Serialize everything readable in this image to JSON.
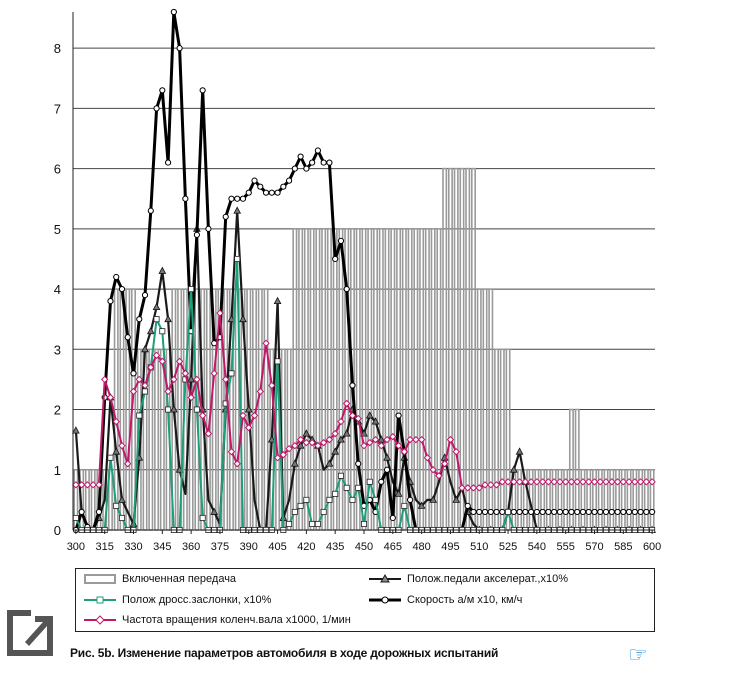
{
  "chart_data": {
    "type": "line",
    "x": [
      300,
      303,
      306,
      309,
      312,
      315,
      318,
      321,
      324,
      327,
      330,
      333,
      336,
      339,
      342,
      345,
      348,
      351,
      354,
      357,
      360,
      363,
      366,
      369,
      372,
      375,
      378,
      381,
      384,
      387,
      390,
      393,
      396,
      399,
      402,
      405,
      408,
      411,
      414,
      417,
      420,
      423,
      426,
      429,
      432,
      435,
      438,
      441,
      444,
      447,
      450,
      453,
      456,
      459,
      462,
      465,
      468,
      471,
      474,
      477,
      480,
      483,
      486,
      489,
      492,
      495,
      498,
      501,
      504,
      507,
      510,
      513,
      516,
      519,
      522,
      525,
      528,
      531,
      534,
      537,
      540,
      543,
      546,
      549,
      552,
      555,
      558,
      561,
      564,
      567,
      570,
      573,
      576,
      579,
      582,
      585,
      588,
      591,
      594,
      597,
      600
    ],
    "xticks": [
      300,
      315,
      330,
      345,
      360,
      375,
      390,
      405,
      420,
      435,
      450,
      465,
      480,
      495,
      510,
      525,
      540,
      555,
      570,
      585,
      600
    ],
    "yticks": [
      0,
      1,
      2,
      3,
      4,
      5,
      6,
      7,
      8
    ],
    "ylim": [
      0,
      8.6
    ],
    "xlim": [
      298.5,
      601.5
    ],
    "grid": true,
    "series": [
      {
        "name": "Включенная передача",
        "kind": "step-bar",
        "color": "#9a9a9a",
        "values": [
          1,
          1,
          1,
          1,
          1,
          1,
          1,
          4,
          4,
          4,
          4,
          3,
          3,
          3,
          3,
          3,
          3,
          4,
          4,
          4,
          4,
          4,
          4,
          4,
          4,
          4,
          4,
          4,
          4,
          4,
          4,
          4,
          4,
          4,
          3,
          3,
          3,
          3,
          5,
          5,
          5,
          5,
          5,
          5,
          5,
          5,
          5,
          5,
          5,
          5,
          5,
          5,
          5,
          5,
          5,
          5,
          5,
          5,
          5,
          5,
          5,
          5,
          5,
          5,
          6,
          6,
          6,
          6,
          6,
          6,
          4,
          4,
          4,
          3,
          3,
          3,
          1,
          1,
          1,
          1,
          1,
          1,
          1,
          1,
          1,
          1,
          2,
          2,
          1,
          1,
          1,
          1,
          1,
          1,
          1,
          1,
          1,
          1,
          1,
          1,
          1
        ]
      },
      {
        "name": "Полож.педали акселерат.,х10%",
        "kind": "line",
        "color": "#1a1a1a",
        "marker": "triangle",
        "values": [
          1.65,
          0.3,
          0.05,
          0,
          0.2,
          0.5,
          2.2,
          1.3,
          0.5,
          0.3,
          0.1,
          1.2,
          3.0,
          3.3,
          3.7,
          4.3,
          3.5,
          2.0,
          1.0,
          0.6,
          2.5,
          5.0,
          2.0,
          0.5,
          0.3,
          0.1,
          2.0,
          3.5,
          5.3,
          3.5,
          2.0,
          0.5,
          0,
          0,
          1.5,
          3.8,
          0.2,
          0.5,
          1.1,
          1.4,
          1.6,
          1.5,
          1.4,
          1.0,
          1.1,
          1.3,
          1.5,
          1.6,
          2.0,
          1.8,
          1.6,
          1.9,
          1.8,
          1.5,
          1.2,
          0.8,
          0.6,
          1.2,
          0.8,
          0.5,
          0.4,
          0.5,
          0.5,
          0.8,
          1.2,
          0.8,
          0.5,
          0.7,
          0.3,
          0.1,
          0,
          0,
          0,
          0,
          0,
          0.3,
          1.0,
          1.3,
          0.8,
          0.4,
          0,
          0,
          0,
          0,
          0,
          0,
          0,
          0,
          0,
          0,
          0,
          0,
          0,
          0,
          0,
          0,
          0,
          0,
          0,
          0,
          0
        ]
      },
      {
        "name": "Скорость а/м х10, км/ч",
        "kind": "line",
        "color": "#000000",
        "marker": "circle",
        "values": [
          0,
          0.3,
          0.05,
          0,
          0.3,
          2.2,
          3.8,
          4.2,
          4.0,
          3.2,
          2.6,
          3.5,
          3.9,
          5.3,
          7.0,
          7.3,
          6.1,
          8.6,
          8.0,
          5.5,
          3.3,
          4.9,
          7.3,
          5.0,
          3.1,
          3.2,
          5.2,
          5.5,
          5.5,
          5.5,
          5.6,
          5.8,
          5.7,
          5.6,
          5.6,
          5.6,
          5.7,
          5.8,
          6.0,
          6.2,
          6.0,
          6.1,
          6.3,
          6.1,
          6.1,
          4.5,
          4.8,
          4.0,
          2.4,
          1.1,
          0.4,
          0.5,
          0.3,
          0.8,
          1.0,
          0.2,
          1.9,
          1.3,
          0.5,
          0,
          0,
          0,
          0,
          0,
          0,
          0,
          0,
          0,
          0.4,
          0.3,
          0.3,
          0.3,
          0.3,
          0.3,
          0.3,
          0.3,
          0.3,
          0.3,
          0.3,
          0.3,
          0.3,
          0.3,
          0.3,
          0.3,
          0.3,
          0.3,
          0.3,
          0.3,
          0.3,
          0.3,
          0.3,
          0.3,
          0.3,
          0.3,
          0.3,
          0.3,
          0.3,
          0.3,
          0.3,
          0.3,
          0.3
        ]
      },
      {
        "name": "Полож дросс.заслонки, х10%",
        "kind": "line",
        "color": "#1e9e7a",
        "marker": "square",
        "values": [
          0.2,
          0,
          0,
          0,
          0,
          0,
          1.2,
          0.4,
          0.2,
          0,
          0,
          1.9,
          2.3,
          2.7,
          3.5,
          3.3,
          2.0,
          0,
          0,
          2.5,
          4.0,
          2.0,
          0.2,
          0,
          0,
          0,
          2.1,
          2.6,
          4.5,
          0,
          0,
          0,
          0,
          0,
          0,
          2.8,
          0,
          0.1,
          0.3,
          0.4,
          0.5,
          0.1,
          0.1,
          0.3,
          0.5,
          0.6,
          0.9,
          0.7,
          0.5,
          0.7,
          0.1,
          0.8,
          0.5,
          0,
          0,
          0,
          0,
          0.4,
          0,
          0,
          0,
          0,
          0,
          0,
          0,
          0,
          0,
          0,
          0,
          0,
          0,
          0,
          0,
          0,
          0,
          0.3,
          0,
          0,
          0,
          0,
          0,
          0,
          0,
          0,
          0,
          0,
          0,
          0,
          0,
          0,
          0,
          0,
          0,
          0,
          0,
          0,
          0,
          0,
          0,
          0,
          0
        ]
      },
      {
        "name": "Частота вращения коленч.вала х1000, 1/мин",
        "kind": "line",
        "color": "#c0186a",
        "marker": "diamond",
        "values": [
          0.75,
          0.75,
          0.75,
          0.75,
          0.75,
          2.5,
          2.2,
          1.8,
          1.4,
          1.1,
          2.3,
          2.5,
          2.4,
          2.7,
          2.9,
          2.8,
          2.3,
          2.5,
          2.8,
          2.6,
          2.2,
          2.5,
          1.9,
          1.6,
          2.6,
          3.6,
          2.5,
          1.3,
          1.1,
          1.9,
          1.7,
          1.9,
          2.3,
          3.1,
          2.4,
          1.2,
          1.25,
          1.35,
          1.4,
          1.5,
          1.45,
          1.45,
          1.4,
          1.45,
          1.5,
          1.6,
          1.8,
          2.1,
          1.9,
          1.85,
          1.4,
          1.45,
          1.5,
          1.4,
          1.5,
          1.55,
          1.4,
          1.3,
          1.5,
          1.5,
          1.5,
          1.2,
          1.0,
          0.9,
          1.1,
          1.5,
          1.3,
          0.7,
          0.7,
          0.7,
          0.7,
          0.75,
          0.75,
          0.75,
          0.8,
          0.8,
          0.8,
          0.8,
          0.8,
          0.8,
          0.8,
          0.8,
          0.8,
          0.8,
          0.8,
          0.8,
          0.8,
          0.8,
          0.8,
          0.8,
          0.8,
          0.8,
          0.8,
          0.8,
          0.8,
          0.8,
          0.8,
          0.8,
          0.8,
          0.8,
          0.8
        ]
      }
    ]
  },
  "legend": {
    "gear": "Включенная передача",
    "throttle": "Полож дросс.заслонки, х10%",
    "rpm": "Частота вращения коленч.вала х1000, 1/мин",
    "pedal": "Полож.педали акселерат.,х10%",
    "speed": "Скорость а/м х10, км/ч"
  },
  "caption": "Рис. 5b. Изменение параметров автомобиля в ходе дорожных испытаний"
}
